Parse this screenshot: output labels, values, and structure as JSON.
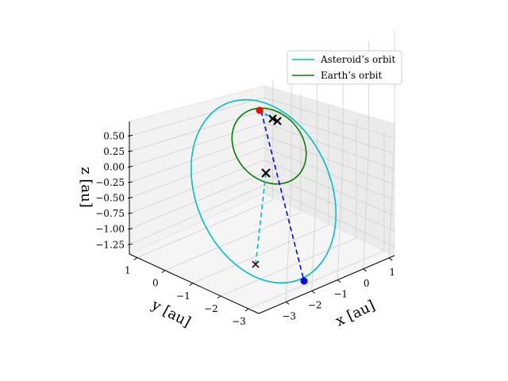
{
  "chart_data": {
    "type": "line3d",
    "axes": {
      "x": {
        "label": "x [au]",
        "ticks": [
          "−3",
          "−2",
          "−1",
          "0",
          "1"
        ]
      },
      "y": {
        "label": "y [au]",
        "ticks": [
          "1",
          "0",
          "−1",
          "−2",
          "−3"
        ]
      },
      "z": {
        "label": "z [au]",
        "ticks": [
          "0.50",
          "0.25",
          "0.00",
          "−0.25",
          "−0.50",
          "−0.75",
          "−1.00",
          "−1.25"
        ]
      }
    },
    "grid": true,
    "legend": {
      "placement": "upper-right",
      "entries": [
        {
          "label": "Asteroid’s orbit",
          "color": "#00bfbf"
        },
        {
          "label": "Earth’s orbit",
          "color": "#008000"
        }
      ]
    },
    "series": [
      {
        "name": "Asteroid’s orbit",
        "color": "#00bfbf",
        "kind": "ellipse"
      },
      {
        "name": "Earth’s orbit",
        "color": "#008000",
        "kind": "ellipse"
      }
    ],
    "connectors": [
      {
        "color": "#0000ff",
        "style": "dashed"
      },
      {
        "color": "#00bfbf",
        "style": "dashed"
      }
    ],
    "markers": [
      {
        "kind": "dot",
        "color": "#ff0000"
      },
      {
        "kind": "dot",
        "color": "#0000ff"
      },
      {
        "kind": "cross",
        "color": "#000000"
      },
      {
        "kind": "cross",
        "color": "#000000"
      },
      {
        "kind": "cross",
        "color": "#000000"
      },
      {
        "kind": "cross",
        "color": "#cc0000"
      }
    ]
  }
}
